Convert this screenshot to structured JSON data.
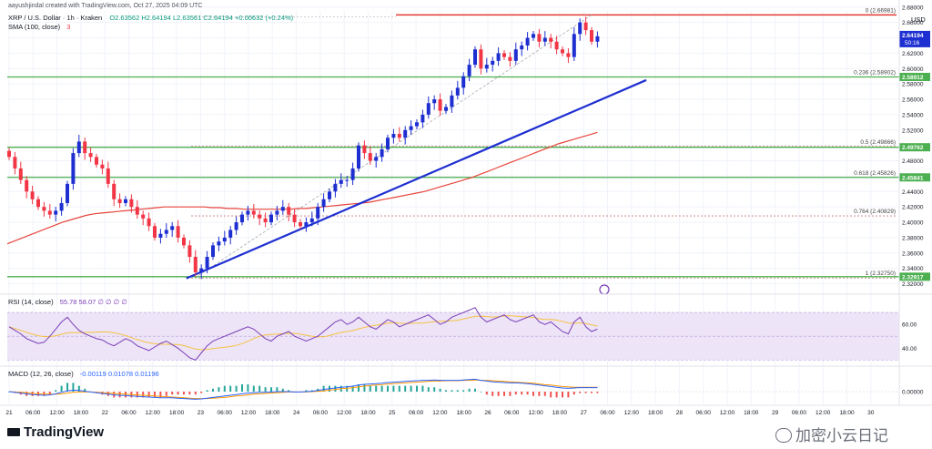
{
  "header": {
    "creator": "aayushjindal created with TradingView.com, Oct 27, 2025 04:09 UTC",
    "symbol": "XRP / U.S. Dollar · 1h · Kraken",
    "ohlc": "O2.63562 H2.64194 L2.63561 C2.64194 +0.00632 (+0.24%)",
    "sma": "SMA (100, close)",
    "sma_count": "3",
    "currency": "USD"
  },
  "watermark": {
    "brand": "TradingView",
    "corner_text": "加密小云日记"
  },
  "colors": {
    "up": "#089981",
    "down": "#f23645",
    "candle_body": "#1e2fd1",
    "sma": "#e8453c",
    "trendline": "#1e2fd1",
    "support": "#4caf50",
    "fib": "#c87a7a",
    "rsi": "#7b3fb8",
    "rsi_ma": "#f5c242",
    "macd": "#2962ff",
    "signal": "#ff9800"
  },
  "chart_data": [
    {
      "type": "candlestick",
      "name": "price",
      "ylim": [
        2.31,
        2.675
      ],
      "y_ticks": [
        "2.68000",
        "2.66000",
        "2.64000",
        "2.62000",
        "2.60000",
        "2.58000",
        "2.56000",
        "2.54000",
        "2.52000",
        "2.50000",
        "2.48000",
        "2.46000",
        "2.44000",
        "2.42000",
        "2.40000",
        "2.38000",
        "2.36000",
        "2.34000",
        "2.32000"
      ],
      "last_price": {
        "value": 2.64194,
        "label": "2.64194",
        "countdown": "50:16"
      },
      "price_lines": [
        {
          "value": 2.58912,
          "label": "2.58912"
        },
        {
          "value": 2.49762,
          "label": "2.49762"
        },
        {
          "value": 2.45841,
          "label": "2.45841"
        },
        {
          "value": 2.32917,
          "label": "2.32917"
        }
      ],
      "fib_levels": [
        {
          "value": 2.66981,
          "label": "0 (2.66981)"
        },
        {
          "value": 2.58902,
          "label": "0.236 (2.58902)"
        },
        {
          "value": 2.49866,
          "label": "0.5 (2.49866)"
        },
        {
          "value": 2.45826,
          "label": "0.618 (2.45826)"
        },
        {
          "value": 2.40829,
          "label": "0.764 (2.40829)"
        },
        {
          "value": 2.3275,
          "label": "1 (2.32750)"
        }
      ],
      "series_close": [
        2.485,
        2.47,
        2.455,
        2.44,
        2.43,
        2.42,
        2.415,
        2.41,
        2.415,
        2.425,
        2.45,
        2.49,
        2.505,
        2.49,
        2.485,
        2.475,
        2.47,
        2.45,
        2.43,
        2.425,
        2.43,
        2.42,
        2.41,
        2.405,
        2.395,
        2.38,
        2.385,
        2.39,
        2.395,
        2.38,
        2.37,
        2.355,
        2.335,
        2.34,
        2.355,
        2.37,
        2.375,
        2.38,
        2.39,
        2.4,
        2.41,
        2.415,
        2.41,
        2.405,
        2.4,
        2.41,
        2.415,
        2.42,
        2.41,
        2.4,
        2.395,
        2.4,
        2.405,
        2.42,
        2.43,
        2.44,
        2.45,
        2.455,
        2.455,
        2.47,
        2.5,
        2.49,
        2.48,
        2.485,
        2.495,
        2.51,
        2.515,
        2.51,
        2.52,
        2.525,
        2.53,
        2.54,
        2.555,
        2.56,
        2.545,
        2.55,
        2.565,
        2.575,
        2.59,
        2.605,
        2.625,
        2.6,
        2.605,
        2.61,
        2.62,
        2.615,
        2.61,
        2.625,
        2.63,
        2.64,
        2.645,
        2.635,
        2.64,
        2.635,
        2.625,
        2.62,
        2.615,
        2.645,
        2.66,
        2.65,
        2.635,
        2.642
      ],
      "sma_100": [
        2.372,
        2.376,
        2.38,
        2.384,
        2.388,
        2.392,
        2.396,
        2.4,
        2.403,
        2.406,
        2.409,
        2.411,
        2.412,
        2.413,
        2.414,
        2.415,
        2.416,
        2.417,
        2.418,
        2.419,
        2.42,
        2.42,
        2.42,
        2.42,
        2.42,
        2.42,
        2.419,
        2.419,
        2.418,
        2.418,
        2.417,
        2.417,
        2.417,
        2.417,
        2.417,
        2.417,
        2.417,
        2.418,
        2.418,
        2.419,
        2.42,
        2.421,
        2.422,
        2.423,
        2.424,
        2.425,
        2.426,
        2.428,
        2.43,
        2.432,
        2.434,
        2.436,
        2.438,
        2.44,
        2.443,
        2.446,
        2.449,
        2.452,
        2.455,
        2.458,
        2.462,
        2.466,
        2.47,
        2.474,
        2.478,
        2.482,
        2.486,
        2.49,
        2.494,
        2.498,
        2.502,
        2.505,
        2.508,
        2.511,
        2.514,
        2.517
      ],
      "trendline": {
        "start": {
          "index": 32,
          "value": 2.327
        },
        "end": {
          "index": 102,
          "value": 2.585
        }
      }
    },
    {
      "type": "line",
      "name": "RSI",
      "label": "RSI (14, close)",
      "values_text": "55.78  58.07  ∅  ∅  ∅  ∅",
      "y_ticks": [
        "60.00",
        "40.00"
      ],
      "ylim": [
        28,
        80
      ],
      "band": [
        30,
        70
      ],
      "series": [
        58,
        55,
        52,
        48,
        46,
        44,
        45,
        50,
        56,
        62,
        66,
        60,
        55,
        52,
        50,
        48,
        47,
        44,
        42,
        45,
        48,
        46,
        42,
        40,
        38,
        41,
        44,
        46,
        43,
        40,
        36,
        32,
        30,
        36,
        42,
        46,
        48,
        50,
        52,
        54,
        56,
        58,
        56,
        52,
        48,
        46,
        50,
        52,
        54,
        50,
        48,
        46,
        48,
        50,
        54,
        58,
        62,
        64,
        60,
        62,
        66,
        62,
        58,
        56,
        60,
        64,
        62,
        58,
        60,
        62,
        64,
        66,
        68,
        64,
        60,
        62,
        66,
        68,
        70,
        72,
        74,
        66,
        62,
        64,
        66,
        68,
        64,
        62,
        64,
        66,
        68,
        62,
        60,
        62,
        58,
        54,
        52,
        62,
        66,
        58,
        54,
        56
      ]
    },
    {
      "type": "line",
      "name": "MACD",
      "label": "MACD (12, 26, close)",
      "values_text": "-0.00119  0.01078  0.01196",
      "y_ticks": [
        "0.00000"
      ],
      "ylim": [
        -0.03,
        0.045
      ],
      "macd": [
        0.0,
        -0.002,
        -0.004,
        -0.006,
        -0.008,
        -0.009,
        -0.01,
        -0.009,
        -0.006,
        -0.002,
        0.002,
        0.004,
        0.003,
        0.001,
        -0.001,
        -0.003,
        -0.005,
        -0.007,
        -0.009,
        -0.01,
        -0.011,
        -0.012,
        -0.013,
        -0.014,
        -0.015,
        -0.016,
        -0.017,
        -0.017,
        -0.017,
        -0.018,
        -0.019,
        -0.02,
        -0.021,
        -0.02,
        -0.018,
        -0.016,
        -0.014,
        -0.012,
        -0.01,
        -0.008,
        -0.006,
        -0.004,
        -0.003,
        -0.002,
        -0.002,
        -0.001,
        0.0,
        0.0,
        0.0,
        -0.001,
        -0.001,
        0.0,
        0.001,
        0.003,
        0.006,
        0.008,
        0.01,
        0.012,
        0.013,
        0.015,
        0.018,
        0.02,
        0.021,
        0.022,
        0.023,
        0.025,
        0.026,
        0.027,
        0.028,
        0.029,
        0.03,
        0.031,
        0.031,
        0.032,
        0.031,
        0.031,
        0.031,
        0.031,
        0.032,
        0.033,
        0.034,
        0.031,
        0.029,
        0.027,
        0.026,
        0.025,
        0.024,
        0.024,
        0.023,
        0.022,
        0.02,
        0.018,
        0.016,
        0.014,
        0.012,
        0.01,
        0.009,
        0.01,
        0.011,
        0.011,
        0.011,
        0.011
      ],
      "signal": [
        0.0,
        -0.001,
        -0.002,
        -0.003,
        -0.005,
        -0.006,
        -0.007,
        -0.007,
        -0.007,
        -0.006,
        -0.004,
        -0.002,
        -0.001,
        -0.001,
        -0.001,
        -0.002,
        -0.003,
        -0.004,
        -0.005,
        -0.006,
        -0.007,
        -0.008,
        -0.009,
        -0.01,
        -0.011,
        -0.012,
        -0.013,
        -0.014,
        -0.015,
        -0.016,
        -0.017,
        -0.018,
        -0.019,
        -0.019,
        -0.019,
        -0.018,
        -0.017,
        -0.016,
        -0.014,
        -0.012,
        -0.011,
        -0.009,
        -0.007,
        -0.006,
        -0.005,
        -0.004,
        -0.003,
        -0.002,
        -0.001,
        -0.001,
        -0.001,
        -0.001,
        0.0,
        0.001,
        0.002,
        0.004,
        0.006,
        0.008,
        0.009,
        0.011,
        0.013,
        0.015,
        0.017,
        0.018,
        0.019,
        0.021,
        0.022,
        0.023,
        0.024,
        0.025,
        0.026,
        0.027,
        0.028,
        0.029,
        0.029,
        0.03,
        0.03,
        0.03,
        0.031,
        0.031,
        0.032,
        0.031,
        0.031,
        0.03,
        0.029,
        0.028,
        0.027,
        0.026,
        0.025,
        0.024,
        0.023,
        0.021,
        0.019,
        0.018,
        0.016,
        0.014,
        0.013,
        0.012,
        0.012,
        0.012,
        0.012,
        0.012
      ]
    }
  ],
  "x_axis": {
    "labels": [
      "21",
      "06:00",
      "12:00",
      "18:00",
      "22",
      "06:00",
      "12:00",
      "18:00",
      "23",
      "06:00",
      "12:00",
      "18:00",
      "24",
      "06:00",
      "12:00",
      "18:00",
      "25",
      "06:00",
      "12:00",
      "18:00",
      "26",
      "06:00",
      "12:00",
      "18:00",
      "27",
      "06:00",
      "12:00",
      "18:00",
      "28",
      "06:00",
      "12:00",
      "18:00",
      "29",
      "06:00",
      "12:00",
      "18:00",
      "30"
    ]
  }
}
